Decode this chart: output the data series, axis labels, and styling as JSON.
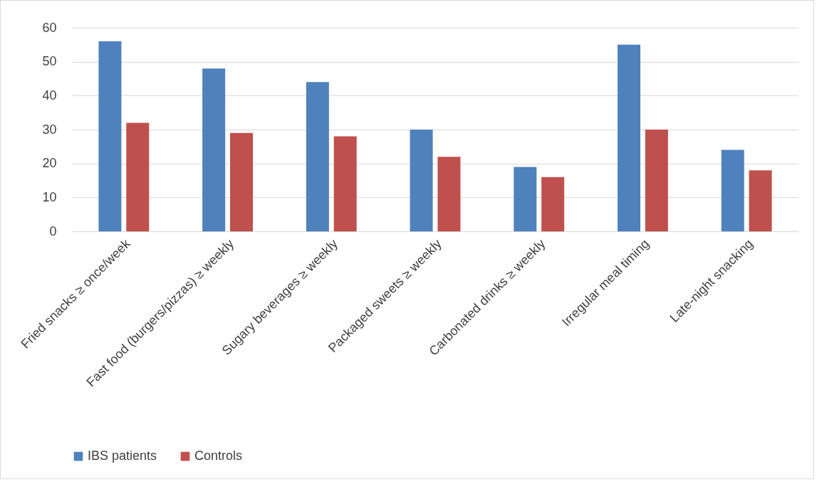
{
  "chart_data": {
    "type": "bar",
    "categories": [
      "Fried snacks ≥ once/week",
      "Fast food (burgers/pizzas) ≥ weekly",
      "Sugary beverages ≥ weekly",
      "Packaged sweets ≥ weekly",
      "Carbonated drinks ≥ weekly",
      "Irregular meal timing",
      "Late-night snacking"
    ],
    "series": [
      {
        "name": "IBS patients",
        "color": "#4f81bd",
        "values": [
          56,
          48,
          44,
          30,
          19,
          55,
          24
        ]
      },
      {
        "name": "Controls",
        "color": "#c0504d",
        "values": [
          32,
          29,
          28,
          22,
          16,
          30,
          18
        ]
      }
    ],
    "ylim": [
      0,
      60
    ],
    "yticks": [
      0,
      10,
      20,
      30,
      40,
      50,
      60
    ],
    "grid": "y",
    "legend": "bottom"
  }
}
